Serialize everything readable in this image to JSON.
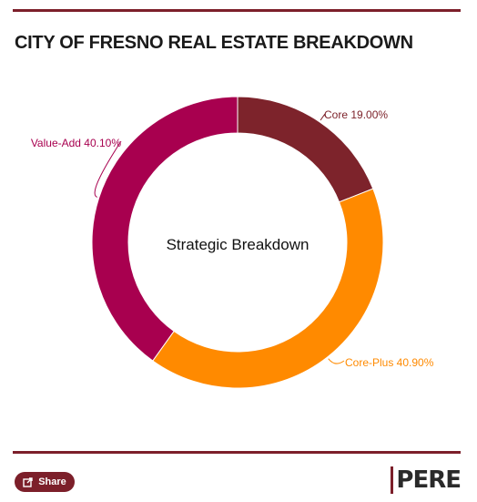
{
  "header": {
    "title": "CITY OF FRESNO REAL ESTATE BREAKDOWN"
  },
  "chart_data": {
    "type": "pie",
    "variant": "donut",
    "center_label": "Strategic Breakdown",
    "slices": [
      {
        "label": "Core",
        "value": 19.0,
        "display": "Core 19.00%",
        "color": "#7d232b"
      },
      {
        "label": "Core-Plus",
        "value": 40.9,
        "display": "Core-Plus 40.90%",
        "color": "#ff8a00"
      },
      {
        "label": "Value-Add",
        "value": 40.1,
        "display": "Value-Add 40.10%",
        "color": "#a8004f"
      }
    ]
  },
  "footer": {
    "share_label": "Share",
    "brand": "PERE",
    "brand_color": "#7c1f2a"
  }
}
